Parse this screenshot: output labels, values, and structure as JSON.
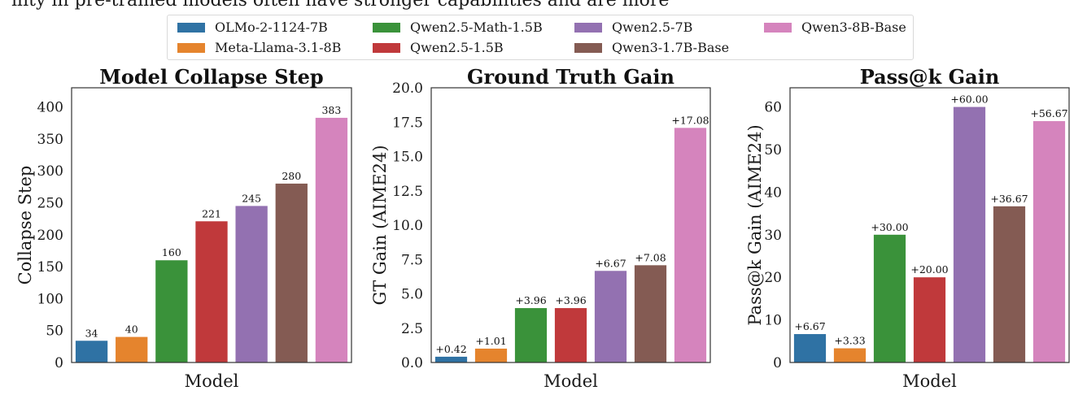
{
  "top_text": "ility in pre-trained models often have stronger capabilities and are more",
  "legend": [
    {
      "name": "OLMo-2-1124-7B",
      "color": "#2f72a4"
    },
    {
      "name": "Meta-Llama-3.1-8B",
      "color": "#e5842d"
    },
    {
      "name": "Qwen2.5-Math-1.5B",
      "color": "#3a923a"
    },
    {
      "name": "Qwen2.5-1.5B",
      "color": "#c0393b"
    },
    {
      "name": "Qwen2.5-7B",
      "color": "#9371b1"
    },
    {
      "name": "Qwen3-1.7B-Base",
      "color": "#845b53"
    },
    {
      "name": "Qwen3-8B-Base",
      "color": "#d584bd"
    }
  ],
  "chart_data": [
    {
      "type": "bar",
      "title": "Model Collapse Step",
      "xlabel": "Model",
      "ylabel": "Collapse Step",
      "ylim": [
        0,
        430
      ],
      "yticks": [
        0,
        50,
        100,
        150,
        200,
        250,
        300,
        350,
        400
      ],
      "yticklabels": [
        "0",
        "50",
        "100",
        "150",
        "200",
        "250",
        "300",
        "350",
        "400"
      ],
      "categories": [
        "OLMo-2-1124-7B",
        "Meta-Llama-3.1-8B",
        "Qwen2.5-Math-1.5B",
        "Qwen2.5-1.5B",
        "Qwen2.5-7B",
        "Qwen3-1.7B-Base",
        "Qwen3-8B-Base"
      ],
      "values": [
        34,
        40,
        160,
        221,
        245,
        280,
        383
      ],
      "data_labels": [
        "34",
        "40",
        "160",
        "221",
        "245",
        "280",
        "383"
      ]
    },
    {
      "type": "bar",
      "title": "Ground Truth Gain",
      "xlabel": "Model",
      "ylabel": "GT Gain (AIME24)",
      "ylim": [
        0,
        20
      ],
      "yticks": [
        0,
        2.5,
        5,
        7.5,
        10,
        12.5,
        15,
        17.5,
        20
      ],
      "yticklabels": [
        "0.0",
        "2.5",
        "5.0",
        "7.5",
        "10.0",
        "12.5",
        "15.0",
        "17.5",
        "20.0"
      ],
      "categories": [
        "OLMo-2-1124-7B",
        "Meta-Llama-3.1-8B",
        "Qwen2.5-Math-1.5B",
        "Qwen2.5-1.5B",
        "Qwen2.5-7B",
        "Qwen3-1.7B-Base",
        "Qwen3-8B-Base"
      ],
      "values": [
        0.42,
        1.01,
        3.96,
        3.96,
        6.67,
        7.08,
        17.08
      ],
      "data_labels": [
        "+0.42",
        "+1.01",
        "+3.96",
        "+3.96",
        "+6.67",
        "+7.08",
        "+17.08"
      ]
    },
    {
      "type": "bar",
      "title": "Pass@k Gain",
      "xlabel": "Model",
      "ylabel": "Pass@k Gain (AIME24)",
      "ylim": [
        0,
        64.5
      ],
      "yticks": [
        0,
        10,
        20,
        30,
        40,
        50,
        60
      ],
      "yticklabels": [
        "0",
        "10",
        "20",
        "30",
        "40",
        "50",
        "60"
      ],
      "categories": [
        "OLMo-2-1124-7B",
        "Meta-Llama-3.1-8B",
        "Qwen2.5-Math-1.5B",
        "Qwen2.5-1.5B",
        "Qwen2.5-7B",
        "Qwen3-1.7B-Base",
        "Qwen3-8B-Base"
      ],
      "values": [
        6.67,
        3.33,
        30.0,
        20.0,
        60.0,
        36.67,
        56.67
      ],
      "data_labels": [
        "+6.67",
        "+3.33",
        "+30.00",
        "+20.00",
        "+60.00",
        "+36.67",
        "+56.67"
      ]
    }
  ]
}
